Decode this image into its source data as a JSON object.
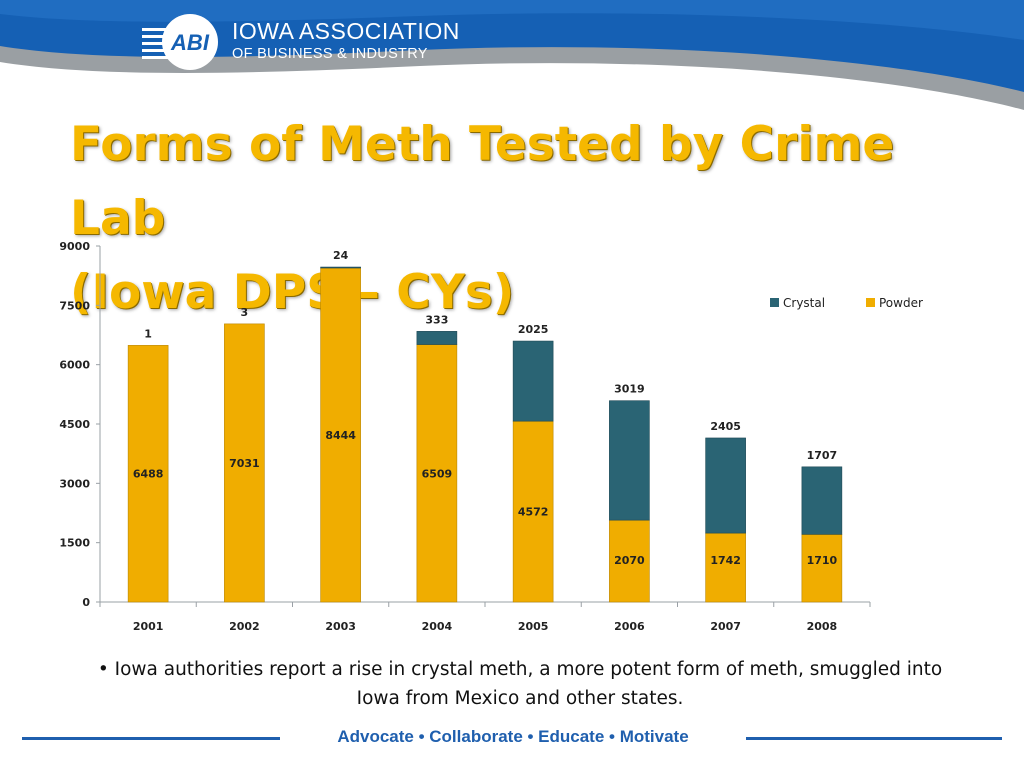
{
  "header": {
    "org_line1": "IOWA ASSOCIATION",
    "org_line2": "OF BUSINESS & INDUSTRY",
    "logo_text": "ABI"
  },
  "title": {
    "line1": "Forms of Meth Tested by Crime Lab",
    "line2": "(Iowa DPS – CYs)"
  },
  "colors": {
    "crystal": "#2a6474",
    "powder": "#f0ad00",
    "title": "#f5b800",
    "brand_blue": "#1f5fae"
  },
  "chart_data": {
    "type": "bar",
    "stacked": true,
    "categories": [
      "2001",
      "2002",
      "2003",
      "2004",
      "2005",
      "2006",
      "2007",
      "2008"
    ],
    "series": [
      {
        "name": "Powder",
        "values": [
          6488,
          7031,
          8444,
          6509,
          4572,
          2070,
          1742,
          1710
        ]
      },
      {
        "name": "Crystal",
        "values": [
          1,
          3,
          24,
          333,
          2025,
          3019,
          2405,
          1707
        ]
      }
    ],
    "yticks": [
      "0",
      "1500",
      "3000",
      "4500",
      "6000",
      "7500",
      "9000"
    ],
    "ylim": [
      0,
      9000
    ],
    "legend": [
      "Crystal",
      "Powder"
    ],
    "legend_position": "top-right",
    "title": "",
    "xlabel": "",
    "ylabel": ""
  },
  "caption": "• Iowa authorities report a rise in crystal meth, a more potent form of meth, smuggled into Iowa from Mexico and other states.",
  "footer": {
    "tagline": "Advocate  •  Collaborate  •  Educate  •  Motivate"
  }
}
